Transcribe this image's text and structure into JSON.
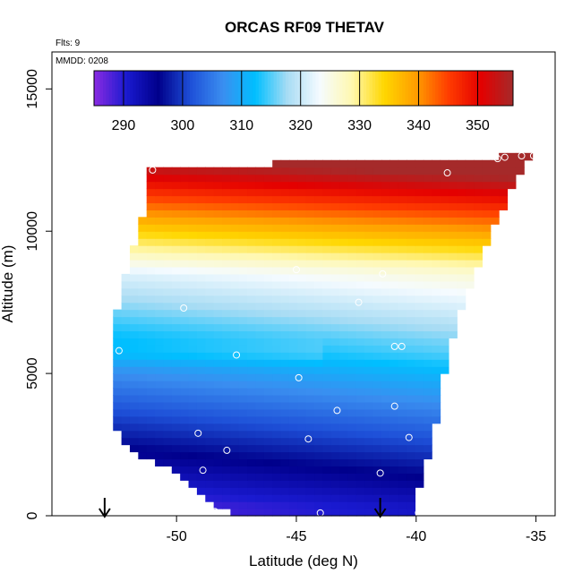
{
  "chart_data": {
    "type": "heatmap",
    "title": "ORCAS RF09 THETAV",
    "subtitle_flights": "Flts: 9",
    "subtitle_date": "MMDD: 0208",
    "xlabel": "Latitude (deg N)",
    "ylabel": "Altitude (m)",
    "xlim": [
      -55.2,
      -34.2
    ],
    "ylim": [
      0,
      16300
    ],
    "xticks": [
      -50,
      -45,
      -40,
      -35
    ],
    "xtick_labels": [
      "-50",
      "-45",
      "-40",
      "-35"
    ],
    "yticks": [
      0,
      5000,
      10000,
      15000
    ],
    "ytick_labels": [
      "0",
      "5000",
      "10000",
      "15000"
    ],
    "colorbar": {
      "range": [
        285,
        356
      ],
      "ticks": [
        290,
        300,
        310,
        320,
        330,
        340,
        350
      ],
      "tick_labels": [
        "290",
        "300",
        "310",
        "320",
        "330",
        "340",
        "350"
      ]
    },
    "field": {
      "lat_range": [
        -52.5,
        -35.2
      ],
      "alt_range": [
        0,
        12500
      ],
      "top_edge": [
        [
          -52.5,
          0
        ],
        [
          -51.0,
          12200
        ],
        [
          -46.2,
          12200
        ],
        [
          -46.0,
          12450
        ],
        [
          -36.5,
          12450
        ],
        [
          -36.4,
          12800
        ],
        [
          -35.2,
          12800
        ]
      ],
      "right_edge": [
        [
          -35.2,
          12800
        ],
        [
          -35.6,
          12200
        ],
        [
          -36.3,
          11000
        ],
        [
          -37.1,
          9500
        ],
        [
          -37.8,
          8000
        ],
        [
          -38.4,
          6500
        ],
        [
          -38.8,
          5000
        ],
        [
          -39.1,
          3600
        ],
        [
          -39.5,
          2200
        ],
        [
          -39.9,
          800
        ],
        [
          -40.1,
          0
        ]
      ],
      "left_edge": [
        [
          -51.1,
          12200
        ],
        [
          -51.3,
          11000
        ],
        [
          -51.6,
          10000
        ],
        [
          -52.0,
          9000
        ],
        [
          -52.3,
          8000
        ],
        [
          -52.5,
          7000
        ],
        [
          -52.6,
          5500
        ],
        [
          -52.6,
          3500
        ],
        [
          -52.4,
          2700
        ],
        [
          -51.4,
          2100
        ],
        [
          -50.1,
          1500
        ],
        [
          -49.0,
          800
        ],
        [
          -48.1,
          200
        ],
        [
          -47.6,
          0
        ]
      ]
    },
    "flight_points": [
      {
        "lat": -51.0,
        "alt": 12150
      },
      {
        "lat": -38.7,
        "alt": 12050
      },
      {
        "lat": -36.6,
        "alt": 12550
      },
      {
        "lat": -36.3,
        "alt": 12600
      },
      {
        "lat": -35.6,
        "alt": 12650
      },
      {
        "lat": -35.1,
        "alt": 12650
      },
      {
        "lat": -52.4,
        "alt": 5800
      },
      {
        "lat": -49.7,
        "alt": 7300
      },
      {
        "lat": -47.5,
        "alt": 5650
      },
      {
        "lat": -45.0,
        "alt": 8650
      },
      {
        "lat": -44.9,
        "alt": 4850
      },
      {
        "lat": -42.4,
        "alt": 7500
      },
      {
        "lat": -41.4,
        "alt": 8500
      },
      {
        "lat": -40.9,
        "alt": 5950
      },
      {
        "lat": -40.6,
        "alt": 5950
      },
      {
        "lat": -38.8,
        "alt": 4500
      },
      {
        "lat": -43.3,
        "alt": 3700
      },
      {
        "lat": -40.9,
        "alt": 3850
      },
      {
        "lat": -49.1,
        "alt": 2900
      },
      {
        "lat": -47.9,
        "alt": 2300
      },
      {
        "lat": -44.5,
        "alt": 2700
      },
      {
        "lat": -40.3,
        "alt": 2750
      },
      {
        "lat": -48.9,
        "alt": 1600
      },
      {
        "lat": -41.5,
        "alt": 1500
      },
      {
        "lat": -48.4,
        "alt": 150
      },
      {
        "lat": -44.0,
        "alt": 100
      },
      {
        "lat": -39.9,
        "alt": 100
      }
    ],
    "arrows": [
      {
        "lat": -53.0
      },
      {
        "lat": -41.5
      }
    ],
    "grid": false,
    "legend": "top (colorbar inset)"
  },
  "colors": {
    "colormap_stops": [
      "#8a2be2",
      "#1a1ad0",
      "#00008b",
      "#1e50d8",
      "#3a8ef0",
      "#00bfff",
      "#a8dcf4",
      "#f5fbff",
      "#fff8b0",
      "#ffd700",
      "#ff9c00",
      "#ff3c00",
      "#e40000",
      "#a52a2a"
    ],
    "frame": "#000000"
  }
}
